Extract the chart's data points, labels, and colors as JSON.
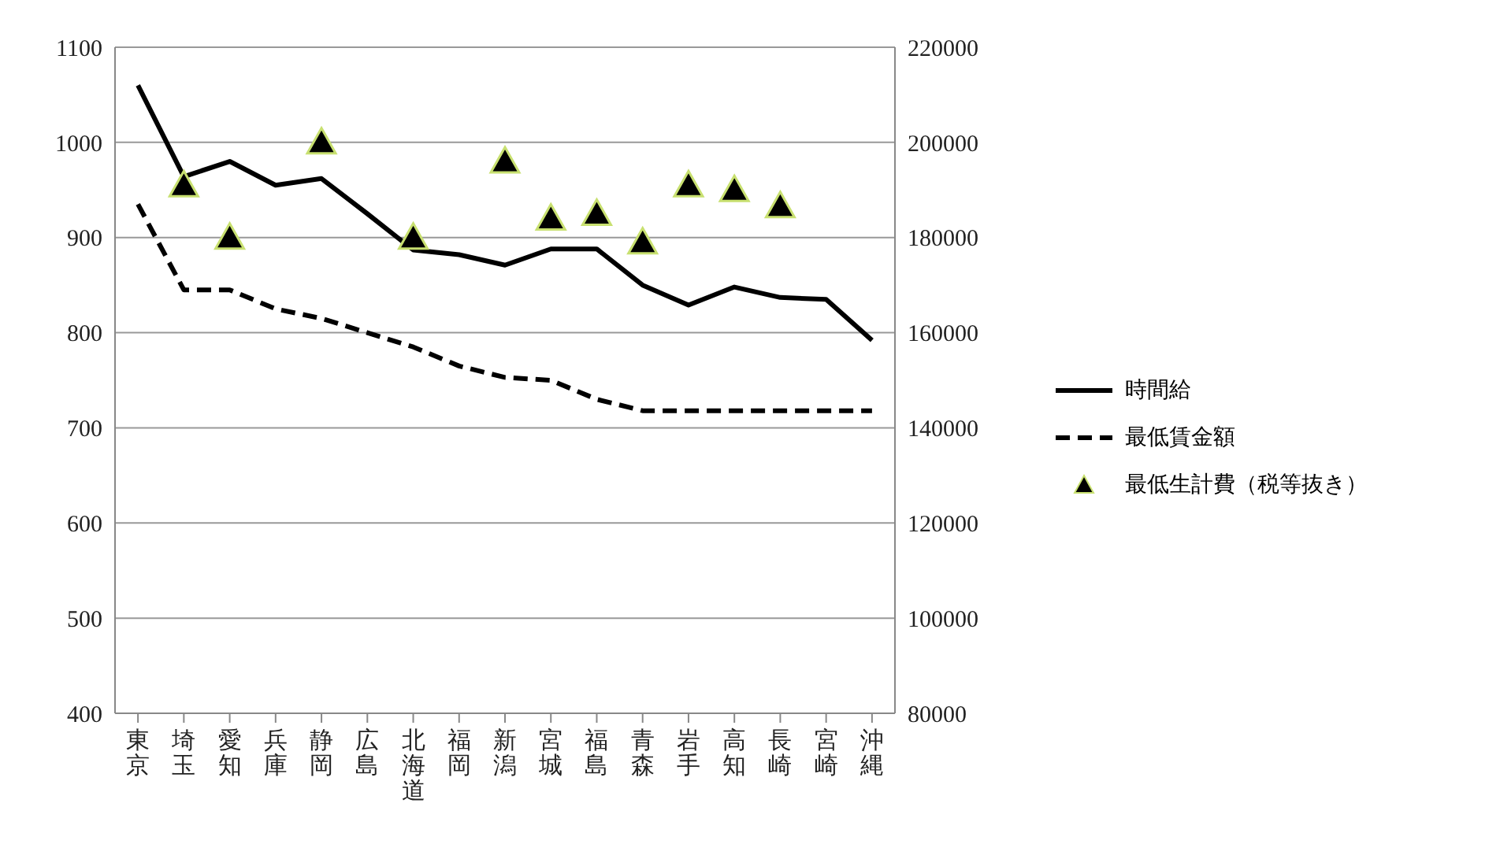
{
  "chart_data": {
    "type": "line",
    "categories": [
      "東京",
      "埼玉",
      "愛知",
      "兵庫",
      "静岡",
      "広島",
      "北海道",
      "福岡",
      "新潟",
      "宮城",
      "福島",
      "青森",
      "岩手",
      "高知",
      "長崎",
      "宮崎",
      "沖縄"
    ],
    "series": [
      {
        "name": "時間給",
        "color": "#000000",
        "line_style": "solid",
        "values": [
          1060,
          964,
          980,
          955,
          962,
          925,
          887,
          882,
          871,
          888,
          888,
          850,
          829,
          848,
          837,
          835,
          792
        ]
      },
      {
        "name": "最低賃金額",
        "color": "#000000",
        "line_style": "dashed",
        "values": [
          935,
          845,
          845,
          825,
          815,
          800,
          785,
          765,
          753,
          750,
          730,
          718,
          718,
          718,
          718,
          718,
          718
        ]
      },
      {
        "name": "最低生計費（税等抜き）",
        "type": "scatter",
        "axis": "y2",
        "marker": "triangle",
        "color": "#000000",
        "values": [
          null,
          191000,
          180000,
          null,
          200000,
          null,
          180000,
          null,
          196000,
          184000,
          185000,
          179000,
          191000,
          190000,
          186600,
          null,
          null
        ]
      }
    ],
    "ylim": [
      400,
      1100
    ],
    "yticks": [
      400,
      500,
      600,
      700,
      800,
      900,
      1000,
      1100
    ],
    "y2lim": [
      80000,
      220000
    ],
    "y2ticks": [
      80000,
      100000,
      120000,
      140000,
      160000,
      180000,
      200000,
      220000
    ],
    "grid": "y",
    "legend": "right"
  }
}
